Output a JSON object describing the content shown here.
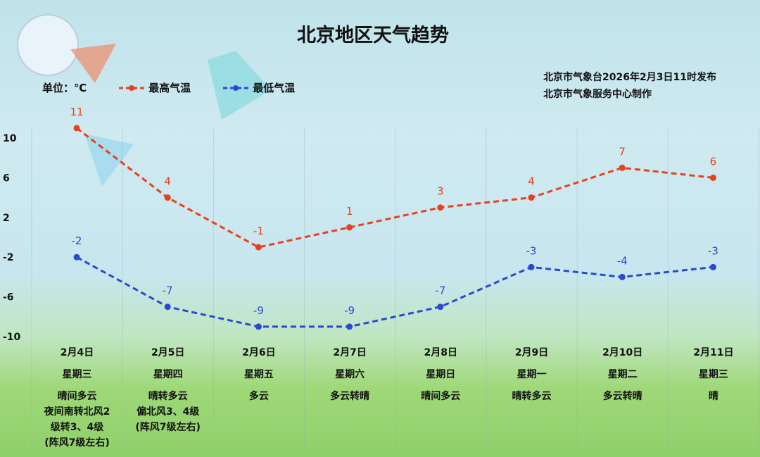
{
  "title": "北京地区天气趋势",
  "legend": {
    "unit": "单位：℃",
    "high": "最高气温",
    "low": "最低气温"
  },
  "issuer": {
    "line1": "北京市气象台2026年2月3日11时发布",
    "line2": "北京市气象服务中心制作"
  },
  "colors": {
    "high": "#e8401e",
    "low": "#2a49d0"
  },
  "chart_data": {
    "type": "line",
    "categories": [
      "2月4日",
      "2月5日",
      "2月6日",
      "2月7日",
      "2月8日",
      "2月9日",
      "2月10日",
      "2月11日"
    ],
    "yticks": [
      10,
      6,
      2,
      -2,
      -6,
      -10
    ],
    "ylim": [
      -10,
      10
    ],
    "series": [
      {
        "name": "最高气温",
        "values": [
          11,
          4,
          -1,
          1,
          3,
          4,
          7,
          6
        ]
      },
      {
        "name": "最低气温",
        "values": [
          -2,
          -7,
          -9,
          -9,
          -7,
          -3,
          -4,
          -3
        ]
      }
    ]
  },
  "days": [
    {
      "date": "2月4日",
      "week": "星期三",
      "cond": "晴间多云",
      "wind": [
        "夜间南转北风2",
        "级转3、4级",
        "(阵风7级左右)"
      ]
    },
    {
      "date": "2月5日",
      "week": "星期四",
      "cond": "晴转多云",
      "wind": [
        "偏北风3、4级",
        "(阵风7级左右)"
      ]
    },
    {
      "date": "2月6日",
      "week": "星期五",
      "cond": "多云",
      "wind": []
    },
    {
      "date": "2月7日",
      "week": "星期六",
      "cond": "多云转晴",
      "wind": []
    },
    {
      "date": "2月8日",
      "week": "星期日",
      "cond": "晴间多云",
      "wind": []
    },
    {
      "date": "2月9日",
      "week": "星期一",
      "cond": "晴转多云",
      "wind": []
    },
    {
      "date": "2月10日",
      "week": "星期二",
      "cond": "多云转晴",
      "wind": []
    },
    {
      "date": "2月11日",
      "week": "星期三",
      "cond": "晴",
      "wind": []
    }
  ]
}
